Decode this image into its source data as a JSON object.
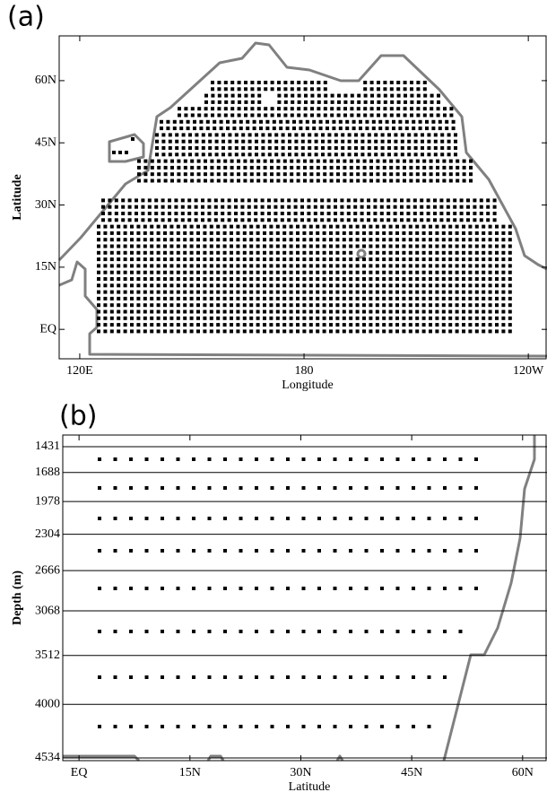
{
  "chart_data": [
    {
      "type": "map",
      "panel_label": "(a)",
      "xlabel": "Longitude",
      "ylabel": "Latitude",
      "xlim": [
        114.5,
        245
      ],
      "ylim": [
        -7.1,
        70.8
      ],
      "xticks": [
        {
          "value": 120,
          "label": "120E"
        },
        180,
        {
          "value": 240,
          "label": "120W"
        }
      ],
      "yticks": [
        {
          "value": 0,
          "label": "EQ"
        },
        {
          "value": 15,
          "label": "15N"
        },
        {
          "value": 30,
          "label": "30N"
        },
        {
          "value": 45,
          "label": "45N"
        },
        {
          "value": 60,
          "label": "60N"
        }
      ],
      "grid": false
    },
    {
      "type": "section",
      "panel_label": "(b)",
      "xlabel": "Latitude",
      "ylabel": "Depth (m)",
      "xlim": [
        -2.2,
        63.3
      ],
      "ylim": [
        4561,
        1315
      ],
      "yinvert": true,
      "xticks": [
        {
          "value": 0,
          "label": "EQ"
        },
        {
          "value": 15,
          "label": "15N"
        },
        {
          "value": 30,
          "label": "30N"
        },
        {
          "value": 45,
          "label": "45N"
        },
        {
          "value": 60,
          "label": "60N"
        }
      ],
      "yticks": [
        1431,
        1688,
        1978,
        2304,
        2666,
        3068,
        3512,
        4000,
        4534
      ],
      "grid": true
    }
  ]
}
